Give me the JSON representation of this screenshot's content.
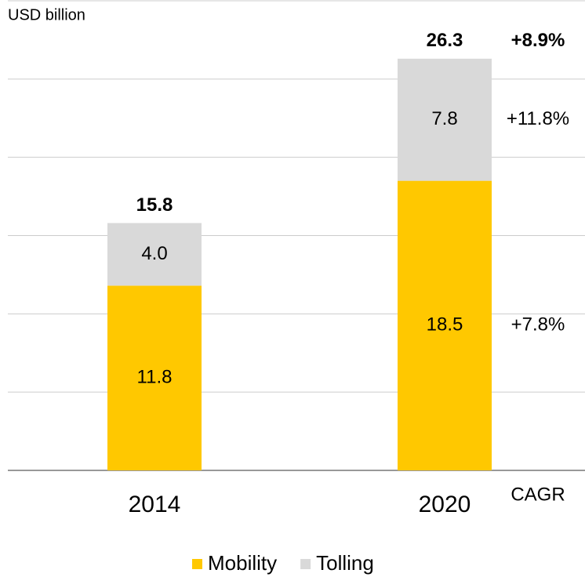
{
  "chart_data": {
    "type": "stacked_bar",
    "unit_label": "USD billion",
    "categories": [
      "2014",
      "2020"
    ],
    "series": [
      {
        "name": "Mobility",
        "color": "#ffc800",
        "values": [
          11.8,
          18.5
        ]
      },
      {
        "name": "Tolling",
        "color": "#d9d9d9",
        "values": [
          4.0,
          7.8
        ],
        "value_labels": [
          "4.0",
          "7.8"
        ]
      }
    ],
    "totals": [
      15.8,
      26.3
    ],
    "cagr": {
      "label": "CAGR",
      "total": "+8.9%",
      "series": [
        "+7.8%",
        "+11.8%"
      ]
    },
    "ylim": [
      0,
      30
    ],
    "yticks": [
      0,
      5,
      10,
      15,
      20,
      25,
      30
    ],
    "grid": true
  }
}
